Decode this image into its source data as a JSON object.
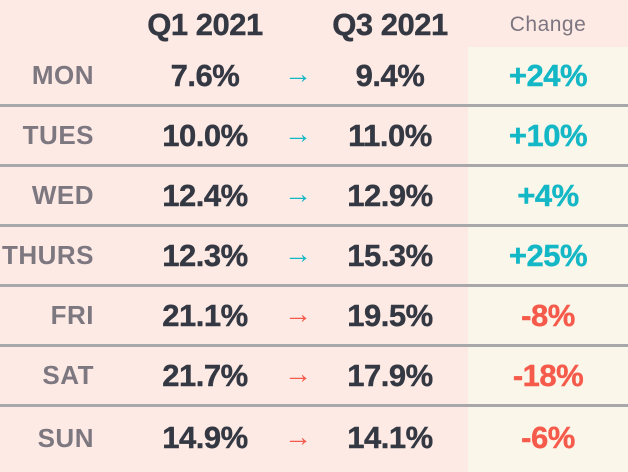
{
  "table": {
    "headers": {
      "q1": "Q1 2021",
      "q3": "Q3 2021",
      "change": "Change"
    },
    "arrow_glyph": "→",
    "rows": [
      {
        "day": "MON",
        "q1": "7.6%",
        "q3": "9.4%",
        "change": "+24%",
        "direction": "up"
      },
      {
        "day": "TUES",
        "q1": "10.0%",
        "q3": "11.0%",
        "change": "+10%",
        "direction": "up"
      },
      {
        "day": "WED",
        "q1": "12.4%",
        "q3": "12.9%",
        "change": "+4%",
        "direction": "up"
      },
      {
        "day": "THURS",
        "q1": "12.3%",
        "q3": "15.3%",
        "change": "+25%",
        "direction": "up"
      },
      {
        "day": "FRI",
        "q1": "21.1%",
        "q3": "19.5%",
        "change": "-8%",
        "direction": "down"
      },
      {
        "day": "SAT",
        "q1": "21.7%",
        "q3": "17.9%",
        "change": "-18%",
        "direction": "down"
      },
      {
        "day": "SUN",
        "q1": "14.9%",
        "q3": "14.1%",
        "change": "-6%",
        "direction": "down"
      }
    ]
  },
  "colors": {
    "background": "#fdeae5",
    "change_column_bg": "#fbf6ea",
    "positive": "#14b7c6",
    "negative": "#f55a4b",
    "value_text": "#343842",
    "label_text": "#7d7780",
    "header_text": "#7d7680",
    "divider": "#a8a8ab"
  },
  "chart_data": {
    "type": "table",
    "title": "",
    "categories": [
      "MON",
      "TUES",
      "WED",
      "THURS",
      "FRI",
      "SAT",
      "SUN"
    ],
    "series": [
      {
        "name": "Q1 2021",
        "values": [
          7.6,
          10.0,
          12.4,
          12.3,
          21.1,
          21.7,
          14.9
        ]
      },
      {
        "name": "Q3 2021",
        "values": [
          9.4,
          11.0,
          12.9,
          15.3,
          19.5,
          17.9,
          14.1
        ]
      },
      {
        "name": "Change",
        "values": [
          "+24%",
          "+10%",
          "+4%",
          "+25%",
          "-8%",
          "-18%",
          "-6%"
        ]
      }
    ],
    "layout_hints": {
      "unit": "percent",
      "positive_change_color": "#14b7c6",
      "negative_change_color": "#f55a4b",
      "change_column_highlighted": true
    }
  }
}
